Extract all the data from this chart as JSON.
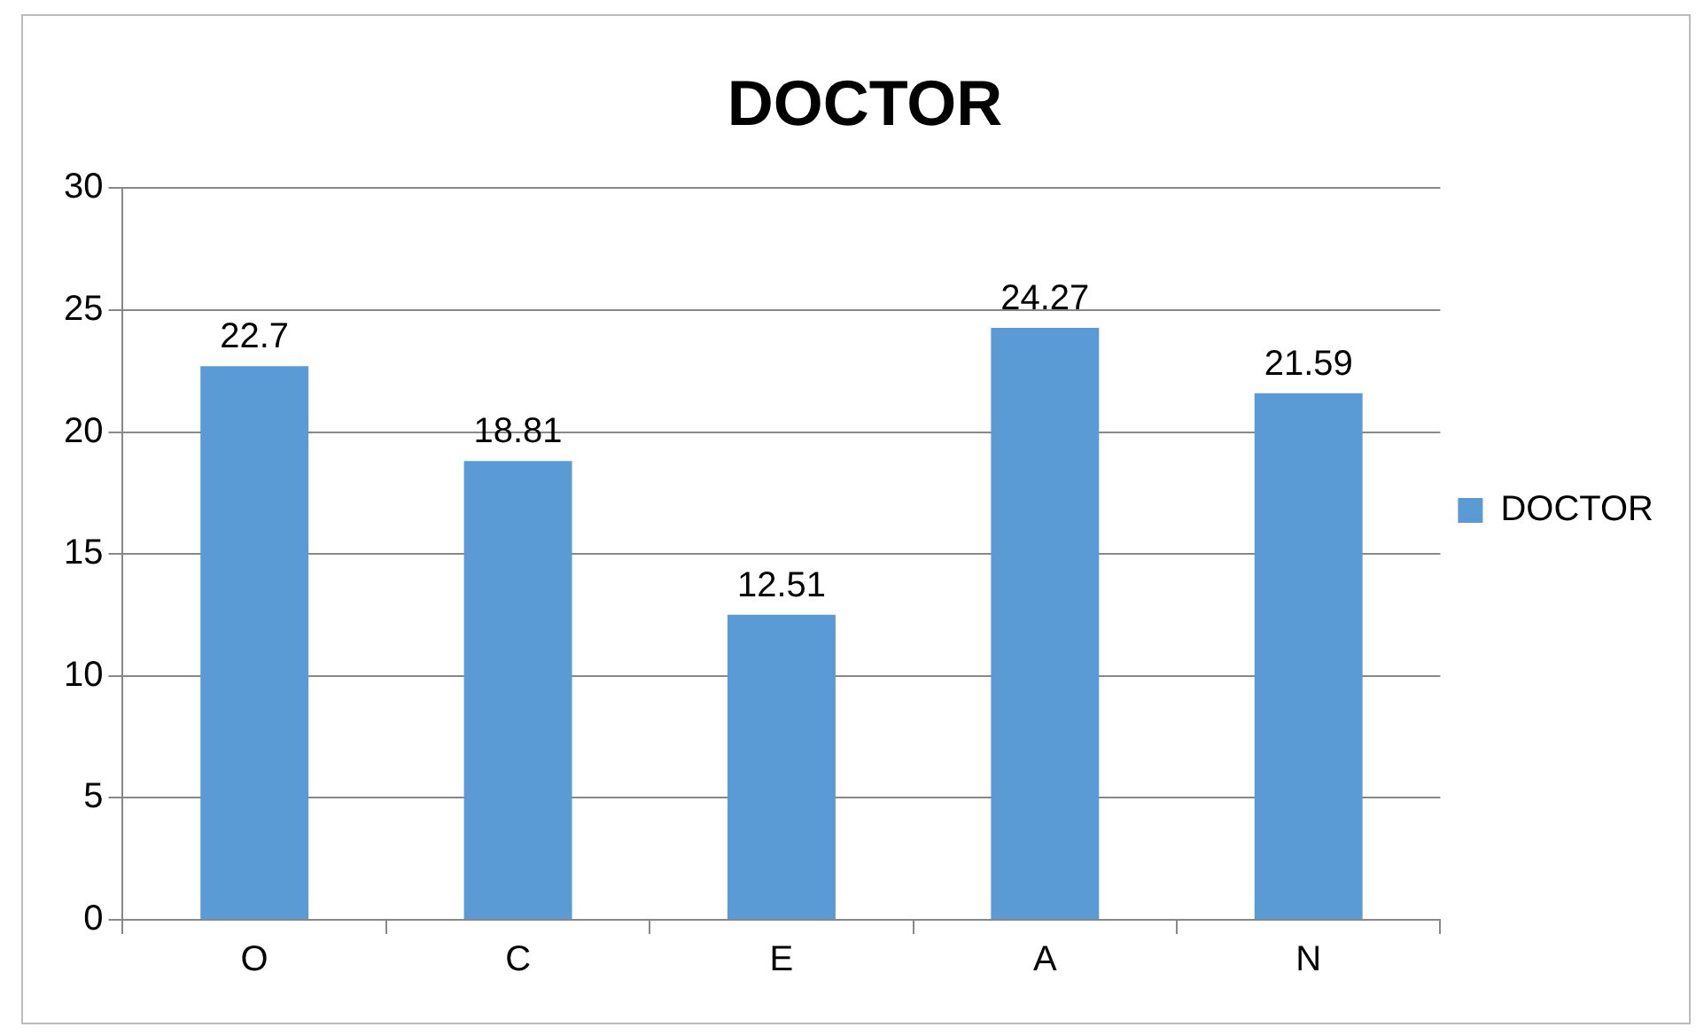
{
  "chart_data": {
    "type": "bar",
    "title": "DOCTOR",
    "categories": [
      "O",
      "C",
      "E",
      "A",
      "N"
    ],
    "series": [
      {
        "name": "DOCTOR",
        "color": "#5b9bd5",
        "values": [
          22.7,
          18.81,
          12.51,
          24.27,
          21.59
        ]
      }
    ],
    "ylim": [
      0,
      30
    ],
    "yticks": [
      0,
      5,
      10,
      15,
      20,
      25,
      30
    ],
    "grid": "y",
    "legend": "right",
    "data_labels": true
  }
}
